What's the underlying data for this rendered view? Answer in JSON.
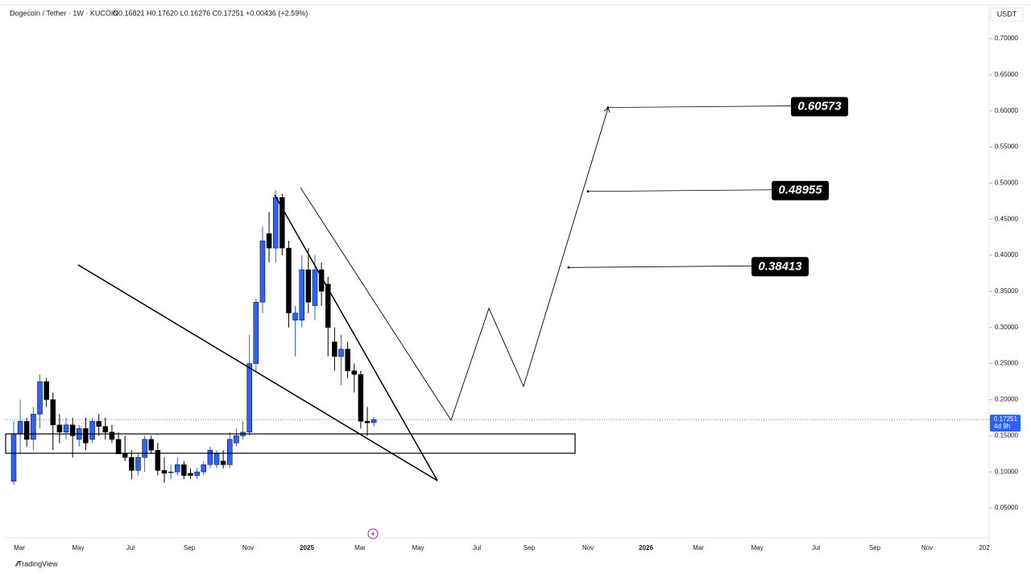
{
  "chart_data": {
    "type": "candlestick",
    "title": "Dogecoin / Tether · 1W · KUCOIN",
    "subtitle": "O0.16821 H0.17620 L0.16276 C0.17251 +0.00436 (+2.59%)",
    "currency": "USDT",
    "last_price": 0.17251,
    "last_price_label": "0.17251",
    "countdown": "4d 9h",
    "footer": "TradingView",
    "up_color": "#2962ff",
    "down_color": "#000000",
    "ylim": [
      0,
      0.72
    ],
    "yticks": [
      {
        "value": 0.05,
        "label": "0.05000"
      },
      {
        "value": 0.1,
        "label": "0.10000"
      },
      {
        "value": 0.15,
        "label": "0.15000"
      },
      {
        "value": 0.2,
        "label": "0.20000"
      },
      {
        "value": 0.25,
        "label": "0.25000"
      },
      {
        "value": 0.3,
        "label": "0.30000"
      },
      {
        "value": 0.35,
        "label": "0.35000"
      },
      {
        "value": 0.4,
        "label": "0.40000"
      },
      {
        "value": 0.45,
        "label": "0.45000"
      },
      {
        "value": 0.5,
        "label": "0.50000"
      },
      {
        "value": 0.55,
        "label": "0.55000"
      },
      {
        "value": 0.6,
        "label": "0.60000"
      },
      {
        "value": 0.65,
        "label": "0.65000"
      },
      {
        "value": 0.7,
        "label": "0.70000"
      }
    ],
    "xlabels": [
      "Mar",
      "May",
      "Jul",
      "Sep",
      "Nov",
      "2025",
      "Mar",
      "May",
      "Jul",
      "Sep",
      "Nov",
      "2026",
      "Mar",
      "May",
      "Jul",
      "Sep",
      "Nov",
      "202"
    ],
    "open": [
      0.087,
      0.153,
      0.17,
      0.145,
      0.18,
      0.225,
      0.2,
      0.165,
      0.155,
      0.165,
      0.145,
      0.16,
      0.145,
      0.17,
      0.163,
      0.155,
      0.145,
      0.125,
      0.12,
      0.102,
      0.12,
      0.145,
      0.13,
      0.102,
      0.1,
      0.1,
      0.11,
      0.098,
      0.095,
      0.1,
      0.11,
      0.11,
      0.115,
      0.11,
      0.14,
      0.15,
      0.155,
      0.25,
      0.335,
      0.43,
      0.41,
      0.48,
      0.41,
      0.31,
      0.31,
      0.38,
      0.33,
      0.38,
      0.36,
      0.28,
      0.26,
      0.27,
      0.24,
      0.235,
      0.17,
      0.16821
    ],
    "high": [
      0.17,
      0.2,
      0.175,
      0.19,
      0.235,
      0.23,
      0.21,
      0.18,
      0.175,
      0.175,
      0.165,
      0.175,
      0.175,
      0.18,
      0.175,
      0.165,
      0.155,
      0.15,
      0.13,
      0.125,
      0.15,
      0.15,
      0.14,
      0.12,
      0.11,
      0.12,
      0.115,
      0.105,
      0.105,
      0.115,
      0.135,
      0.13,
      0.13,
      0.155,
      0.16,
      0.17,
      0.29,
      0.34,
      0.44,
      0.46,
      0.49,
      0.485,
      0.42,
      0.33,
      0.4,
      0.41,
      0.4,
      0.39,
      0.37,
      0.3,
      0.29,
      0.28,
      0.25,
      0.24,
      0.19,
      0.1762
    ],
    "low": [
      0.082,
      0.125,
      0.135,
      0.13,
      0.16,
      0.19,
      0.13,
      0.14,
      0.145,
      0.12,
      0.135,
      0.13,
      0.14,
      0.15,
      0.145,
      0.14,
      0.125,
      0.115,
      0.09,
      0.095,
      0.1,
      0.125,
      0.095,
      0.085,
      0.09,
      0.095,
      0.09,
      0.09,
      0.09,
      0.095,
      0.105,
      0.105,
      0.105,
      0.105,
      0.135,
      0.145,
      0.15,
      0.24,
      0.32,
      0.39,
      0.39,
      0.4,
      0.3,
      0.26,
      0.3,
      0.32,
      0.31,
      0.33,
      0.26,
      0.24,
      0.22,
      0.23,
      0.21,
      0.16,
      0.15,
      0.16276
    ],
    "close": [
      0.153,
      0.17,
      0.145,
      0.18,
      0.225,
      0.2,
      0.165,
      0.155,
      0.165,
      0.15,
      0.16,
      0.14,
      0.17,
      0.163,
      0.155,
      0.145,
      0.125,
      0.12,
      0.102,
      0.12,
      0.145,
      0.13,
      0.102,
      0.098,
      0.1,
      0.11,
      0.095,
      0.095,
      0.1,
      0.11,
      0.13,
      0.125,
      0.11,
      0.145,
      0.15,
      0.155,
      0.25,
      0.335,
      0.42,
      0.41,
      0.48,
      0.41,
      0.32,
      0.32,
      0.38,
      0.335,
      0.38,
      0.35,
      0.3,
      0.26,
      0.27,
      0.24,
      0.235,
      0.17,
      0.168,
      0.17251
    ],
    "annotations": [
      {
        "value": 0.60573,
        "label": "0.60573"
      },
      {
        "value": 0.48955,
        "label": "0.48955"
      },
      {
        "value": 0.38413,
        "label": "0.38413"
      }
    ]
  }
}
